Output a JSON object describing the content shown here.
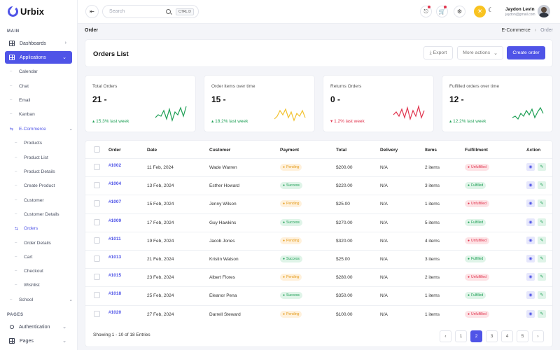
{
  "app": {
    "name": "Urbix"
  },
  "sidebar": {
    "main_title": "MAIN",
    "dashboards": "Dashboards",
    "applications": "Applications",
    "app_items": [
      "Calendar",
      "Chat",
      "Email",
      "Kanban"
    ],
    "ecommerce": "E-Commerce",
    "ecom_items": [
      "Products",
      "Product List",
      "Product Details",
      "Create Product",
      "Customer",
      "Customer Details",
      "Orders",
      "Order Details",
      "Cart",
      "Checkout",
      "Wishlist"
    ],
    "school": "School",
    "pages_title": "PAGES",
    "authentication": "Authentication",
    "pages": "Pages"
  },
  "topbar": {
    "search_placeholder": "Search",
    "shortcut": "CTRL D",
    "user_name": "Jaydon Levin",
    "user_email": "jaydon@gmail.com"
  },
  "breadcrumb": {
    "page": "Order",
    "parent": "E-Commerce",
    "current": "Order"
  },
  "header": {
    "title": "Orders List",
    "export": "Export",
    "more_actions": "More actions",
    "create": "Create order"
  },
  "stats": [
    {
      "label": "Total Orders",
      "value": "21 -",
      "trend": "15.3% last week",
      "direction": "up",
      "color": "#1e9f55"
    },
    {
      "label": "Order items over time",
      "value": "15 -",
      "trend": "18.2% last week",
      "direction": "up",
      "color": "#f2c230"
    },
    {
      "label": "Returns Orders",
      "value": "0 -",
      "trend": "1.2% last week",
      "direction": "down",
      "color": "#e0334d"
    },
    {
      "label": "Fulfilled orders over time",
      "value": "12 -",
      "trend": "12.2% last week",
      "direction": "up",
      "color": "#1e9f55"
    }
  ],
  "table": {
    "headers": [
      "Order",
      "Date",
      "Customer",
      "Payment",
      "Total",
      "Delivery",
      "Items",
      "Fulfillment",
      "Action"
    ],
    "rows": [
      {
        "order": "#1002",
        "date": "11 Feb, 2024",
        "customer": "Wade Warren",
        "payment": "Pending",
        "total": "$200.00",
        "delivery": "N/A",
        "items": "2 items",
        "fulfillment": "Unfulfilled"
      },
      {
        "order": "#1004",
        "date": "13 Feb, 2024",
        "customer": "Esther Howard",
        "payment": "Success",
        "total": "$220.00",
        "delivery": "N/A",
        "items": "3 items",
        "fulfillment": "Fulfilled"
      },
      {
        "order": "#1007",
        "date": "15 Feb, 2024",
        "customer": "Jenny Wilson",
        "payment": "Pending",
        "total": "$25.00",
        "delivery": "N/A",
        "items": "1 items",
        "fulfillment": "Unfulfilled"
      },
      {
        "order": "#1009",
        "date": "17 Feb, 2024",
        "customer": "Guy Hawkins",
        "payment": "Success",
        "total": "$270.00",
        "delivery": "N/A",
        "items": "5 items",
        "fulfillment": "Fulfilled"
      },
      {
        "order": "#1011",
        "date": "19 Feb, 2024",
        "customer": "Jacob Jones",
        "payment": "Pending",
        "total": "$320.00",
        "delivery": "N/A",
        "items": "4 items",
        "fulfillment": "Unfulfilled"
      },
      {
        "order": "#1013",
        "date": "21 Feb, 2024",
        "customer": "Kristin Watson",
        "payment": "Success",
        "total": "$25.00",
        "delivery": "N/A",
        "items": "3 items",
        "fulfillment": "Fulfilled"
      },
      {
        "order": "#1015",
        "date": "23 Feb, 2024",
        "customer": "Albert Flores",
        "payment": "Pending",
        "total": "$280.00",
        "delivery": "N/A",
        "items": "2 items",
        "fulfillment": "Unfulfilled"
      },
      {
        "order": "#1018",
        "date": "25 Feb, 2024",
        "customer": "Eleanor Pena",
        "payment": "Success",
        "total": "$350.00",
        "delivery": "N/A",
        "items": "1 items",
        "fulfillment": "Fulfilled"
      },
      {
        "order": "#1020",
        "date": "27 Feb, 2024",
        "customer": "Darrell Steward",
        "payment": "Pending",
        "total": "$100.00",
        "delivery": "N/A",
        "items": "1 items",
        "fulfillment": "Unfulfilled"
      }
    ],
    "footer": "Showing 1 - 10 of 18 Entries",
    "pages": [
      "1",
      "2",
      "3",
      "4",
      "5"
    ],
    "current_page": "2"
  },
  "colors": {
    "accent": "#4f54e7",
    "success": "#1e9f55",
    "danger": "#e0334d",
    "warning": "#e39a18"
  }
}
